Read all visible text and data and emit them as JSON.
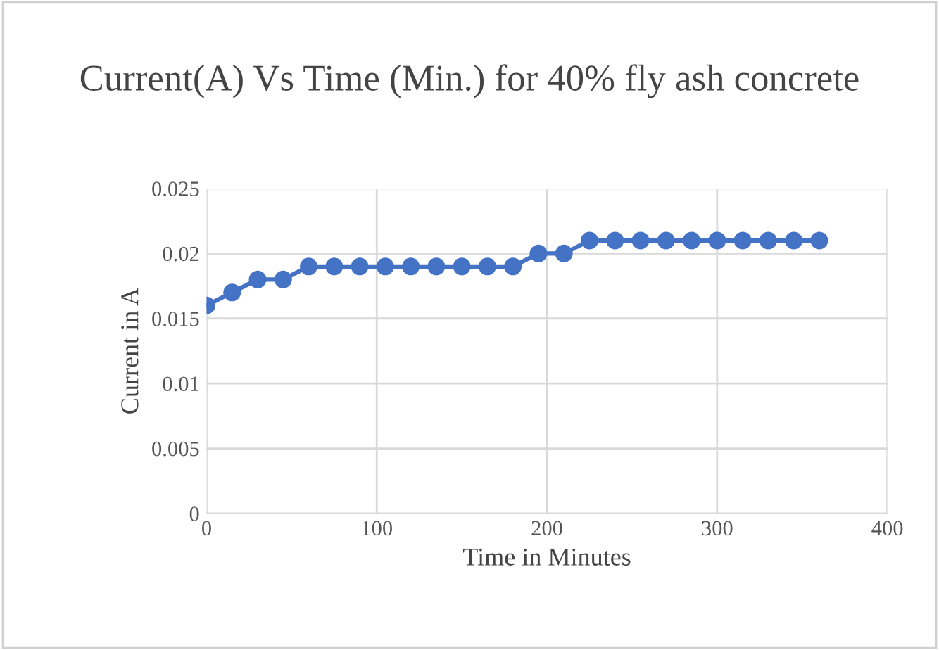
{
  "chart_data": {
    "type": "line",
    "title": "Current(A) Vs Time (Min.) for 40% fly ash concrete",
    "xlabel": "Time in Minutes",
    "ylabel": "Current in A",
    "x": [
      0,
      15,
      30,
      45,
      60,
      75,
      90,
      105,
      120,
      135,
      150,
      165,
      180,
      195,
      210,
      225,
      240,
      255,
      270,
      285,
      300,
      315,
      330,
      345,
      360
    ],
    "series": [
      {
        "color": "#4472c4",
        "values": [
          0.016,
          0.017,
          0.018,
          0.018,
          0.019,
          0.019,
          0.019,
          0.019,
          0.019,
          0.019,
          0.019,
          0.019,
          0.019,
          0.02,
          0.02,
          0.021,
          0.021,
          0.021,
          0.021,
          0.021,
          0.021,
          0.021,
          0.021,
          0.021,
          0.021
        ]
      }
    ],
    "marker": "circle",
    "line_style": "solid",
    "grid": true,
    "xlim": [
      0,
      400
    ],
    "xticks": [
      0,
      100,
      200,
      300,
      400
    ],
    "ylim": [
      0,
      0.025
    ],
    "yticks": [
      {
        "value": 0,
        "label": "0"
      },
      {
        "value": 0.005,
        "label": "0.005"
      },
      {
        "value": 0.01,
        "label": "0.01"
      },
      {
        "value": 0.015,
        "label": "0.015"
      },
      {
        "value": 0.02,
        "label": "0.02"
      },
      {
        "value": 0.025,
        "label": "0.025"
      }
    ]
  }
}
